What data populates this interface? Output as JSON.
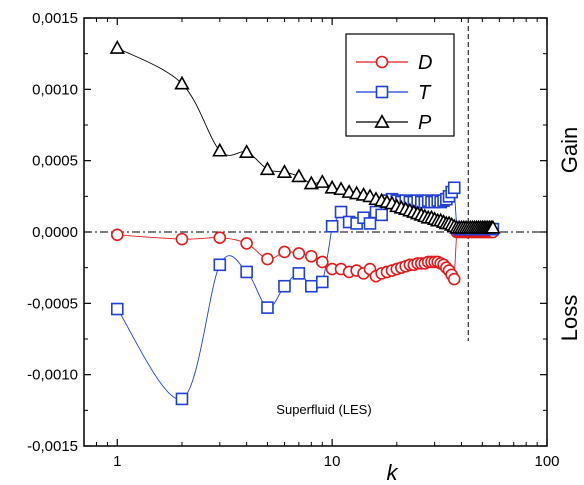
{
  "chart_data": {
    "type": "scatter",
    "xscale": "log",
    "xlim": [
      0.7,
      100
    ],
    "ylim": [
      -0.0015,
      0.0015
    ],
    "xlabel": "k",
    "ylabel": "",
    "x_ticks": [
      1,
      10,
      100
    ],
    "x_tick_labels": [
      "1",
      "10",
      "100"
    ],
    "y_ticks": [
      -0.0015,
      -0.001,
      -0.0005,
      0,
      0.0005,
      0.001,
      0.0015
    ],
    "y_tick_labels": [
      "-0,0015",
      "-0,0010",
      "-0,0005",
      "0,0000",
      "0,0005",
      "0,0010",
      "0,0015"
    ],
    "right_labels": {
      "gain": "Gain",
      "loss": "Loss"
    },
    "annotation": "Superfluid (LES)",
    "vertical_line_x": 43,
    "zero_line": true,
    "legend_placement": "top-right",
    "series": [
      {
        "name": "D",
        "marker": "circle",
        "color": "#e31a1c",
        "x": [
          1,
          2,
          3,
          4,
          5,
          6,
          7,
          8,
          9,
          10,
          11,
          12,
          13,
          14,
          15,
          16,
          17,
          18,
          19,
          20,
          21,
          22,
          23,
          24,
          25,
          26,
          27,
          28,
          29,
          30,
          31,
          32,
          33,
          34,
          35,
          36,
          37,
          38,
          39,
          40,
          41,
          42,
          43,
          44,
          45,
          46,
          47,
          48,
          49,
          50,
          51,
          52,
          53,
          54,
          55,
          56
        ],
        "y": [
          -2e-05,
          -5e-05,
          -4e-05,
          -8e-05,
          -0.00019,
          -0.00014,
          -0.00015,
          -0.00017,
          -0.00021,
          -0.00026,
          -0.00026,
          -0.00028,
          -0.00027,
          -0.00029,
          -0.00026,
          -0.00031,
          -0.00029,
          -0.00028,
          -0.00027,
          -0.00026,
          -0.00025,
          -0.00024,
          -0.00023,
          -0.00023,
          -0.00022,
          -0.00022,
          -0.00022,
          -0.00021,
          -0.00021,
          -0.00021,
          -0.00021,
          -0.00022,
          -0.00023,
          -0.00025,
          -0.00027,
          -0.0003,
          -0.00033,
          0.0,
          0.0,
          0.0,
          0.0,
          0.0,
          0.0,
          0.0,
          0.0,
          0.0,
          0.0,
          0.0,
          0.0,
          0.0,
          0.0,
          0.0,
          0.0,
          0.0,
          0.0,
          0.0
        ]
      },
      {
        "name": "T",
        "marker": "square",
        "color": "#1f3fd6",
        "x": [
          1,
          2,
          3,
          4,
          5,
          6,
          7,
          8,
          9,
          10,
          11,
          12,
          13,
          14,
          15,
          16,
          17,
          18,
          19,
          20,
          21,
          22,
          23,
          24,
          25,
          26,
          27,
          28,
          29,
          30,
          31,
          32,
          33,
          34,
          35,
          36,
          37,
          38,
          39,
          40,
          41,
          42,
          43,
          44,
          45,
          46,
          47,
          48,
          49,
          50,
          51,
          52,
          53,
          54,
          55,
          56
        ],
        "y": [
          -0.00054,
          -0.00117,
          -0.00023,
          -0.00028,
          -0.00053,
          -0.00038,
          -0.00029,
          -0.00038,
          -0.00035,
          4e-05,
          0.00014,
          7e-05,
          6e-05,
          0.0001,
          6e-05,
          0.00014,
          0.00012,
          0.00022,
          0.00023,
          0.00022,
          0.00021,
          0.00022,
          0.00021,
          0.00021,
          0.00022,
          0.00021,
          0.00021,
          0.00022,
          0.00021,
          0.00021,
          0.00022,
          0.00021,
          0.00022,
          0.00023,
          0.00025,
          0.00028,
          0.00031,
          3e-05,
          2e-05,
          2e-05,
          2e-05,
          2e-05,
          2e-05,
          2e-05,
          2e-05,
          2e-05,
          2e-05,
          2e-05,
          2e-05,
          2e-05,
          2e-05,
          2e-05,
          2e-05,
          2e-05,
          2e-05,
          2e-05
        ]
      },
      {
        "name": "P",
        "marker": "triangle",
        "color": "#000000",
        "x": [
          1,
          2,
          3,
          4,
          5,
          6,
          7,
          8,
          9,
          10,
          11,
          12,
          13,
          14,
          15,
          16,
          17,
          18,
          19,
          20,
          21,
          22,
          23,
          24,
          25,
          26,
          27,
          28,
          29,
          30,
          31,
          32,
          33,
          34,
          35,
          36,
          37,
          38,
          39,
          40,
          41,
          42,
          43,
          44,
          45,
          46,
          47,
          48,
          49,
          50,
          51,
          52,
          53,
          54,
          55,
          56
        ],
        "y": [
          0.00129,
          0.00104,
          0.00057,
          0.00056,
          0.00044,
          0.00042,
          0.00039,
          0.00034,
          0.00035,
          0.00031,
          0.0003,
          0.00028,
          0.00027,
          0.00026,
          0.00025,
          0.00023,
          0.00022,
          0.00021,
          0.0002,
          0.00018,
          0.00017,
          0.00016,
          0.00015,
          0.00014,
          0.00013,
          0.00012,
          0.00011,
          0.0001,
          0.0001,
          9e-05,
          8e-05,
          8e-05,
          7e-05,
          6e-05,
          6e-05,
          5e-05,
          4e-05,
          3e-05,
          3e-05,
          3e-05,
          3e-05,
          3e-05,
          3e-05,
          3e-05,
          3e-05,
          3e-05,
          3e-05,
          3e-05,
          3e-05,
          3e-05,
          3e-05,
          3e-05,
          3e-05,
          3e-05,
          3e-05,
          3e-05
        ]
      }
    ]
  }
}
